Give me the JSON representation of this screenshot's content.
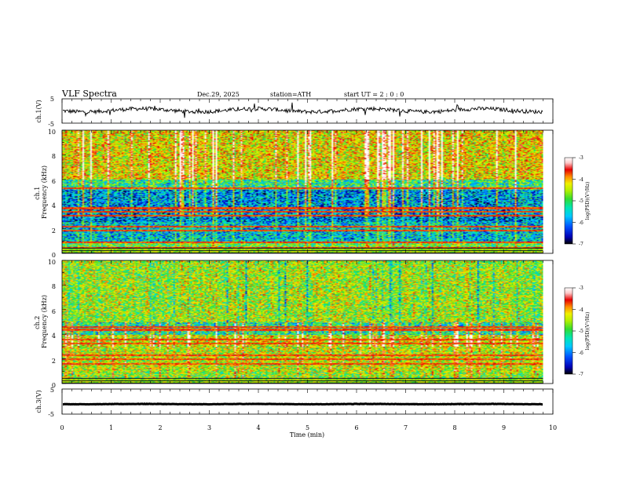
{
  "header": {
    "title": "VLF  Spectra",
    "date": "Dec.29, 2025",
    "station": "station=ATH",
    "start_ut": "start  UT  =   2  : 0   : 0"
  },
  "chart_data": [
    {
      "type": "line",
      "name": "ch1-waveform",
      "ylabel": "ch.1(V)",
      "ylim": [
        -5,
        5
      ],
      "yticks": [
        "5",
        "-5"
      ],
      "xlim": [
        0,
        10
      ],
      "mean_level": 0.3
    },
    {
      "type": "heatmap",
      "name": "ch1-spectrogram",
      "ylabel": "ch.1\nFrequency  (kHz)",
      "ylim": [
        0,
        10
      ],
      "yticks": [
        "10",
        "8",
        "6",
        "4",
        "2",
        "0"
      ],
      "colorbar": {
        "label": "log(PSD)(V²/Hz)",
        "range": [
          -7,
          -3
        ],
        "ticks": [
          "-3",
          "-4",
          "-5",
          "-6",
          "-7"
        ]
      },
      "horizontal_lines_khz": [
        0.5,
        0.9,
        1.9,
        2.2,
        3.1,
        3.4,
        3.7,
        5.3
      ]
    },
    {
      "type": "heatmap",
      "name": "ch2-spectrogram",
      "ylabel": "ch.2\nFrequency  (kHz)",
      "ylim": [
        0,
        10
      ],
      "yticks": [
        "10",
        "8",
        "6",
        "4",
        "2",
        "0"
      ],
      "colorbar": {
        "label": "log(PSD)(V²/Hz)",
        "range": [
          -7,
          -3
        ],
        "ticks": [
          "-3",
          "-4",
          "-5",
          "-6",
          "-7"
        ]
      },
      "horizontal_lines_khz": [
        0.4,
        1.6,
        2.0,
        2.3,
        3.3,
        3.6,
        4.4,
        4.6
      ]
    },
    {
      "type": "line",
      "name": "ch3-waveform",
      "ylabel": "ch.3(V)",
      "ylim": [
        -5,
        5
      ],
      "yticks": [
        "5",
        "-5"
      ],
      "xlim": [
        0,
        10
      ],
      "mean_level": -1.0
    }
  ],
  "x_axis": {
    "label": "Time  (min)",
    "range": [
      0,
      10
    ],
    "ticks": [
      "0",
      "1",
      "2",
      "3",
      "4",
      "5",
      "6",
      "7",
      "8",
      "9",
      "10"
    ],
    "data_end": 9.8
  },
  "colors": {
    "colormap": [
      "#000000",
      "#0000b4",
      "#0050ff",
      "#00c8ff",
      "#00e6b4",
      "#32dc32",
      "#b4f000",
      "#f0f000",
      "#ff8c00",
      "#e60000",
      "#ffc8c8",
      "#ffffff"
    ]
  }
}
